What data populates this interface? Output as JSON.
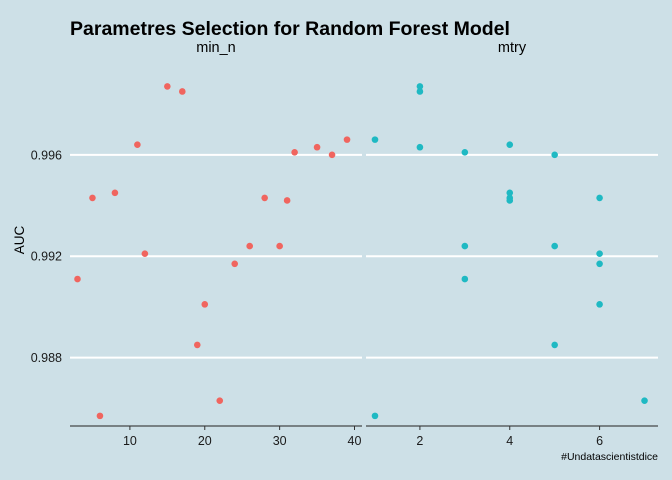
{
  "chart_data": {
    "type": "scatter",
    "title": "Parametres Selection for Random Forest Model",
    "ylabel": "AUC",
    "caption": "#Undatascientistdice",
    "ylim": [
      0.9853,
      0.9999
    ],
    "y_ticks": [
      0.988,
      0.992,
      0.996
    ],
    "y_tick_labels": [
      "0.988",
      "0.992",
      "0.996"
    ],
    "grid": "horizontal major lines only",
    "legend": "none",
    "panels": [
      {
        "name": "min_n",
        "label": "min_n",
        "color": "#f0655f",
        "xlim": [
          2,
          41
        ],
        "x_ticks": [
          10,
          20,
          30,
          40
        ],
        "x_tick_labels": [
          "10",
          "20",
          "30",
          "40"
        ],
        "points": [
          {
            "x": 3,
            "y": 0.9911
          },
          {
            "x": 5,
            "y": 0.9943
          },
          {
            "x": 6,
            "y": 0.9857
          },
          {
            "x": 8,
            "y": 0.9945
          },
          {
            "x": 11,
            "y": 0.9964
          },
          {
            "x": 12,
            "y": 0.9921
          },
          {
            "x": 15,
            "y": 0.9987
          },
          {
            "x": 17,
            "y": 0.9985
          },
          {
            "x": 19,
            "y": 0.9885
          },
          {
            "x": 20,
            "y": 0.9901
          },
          {
            "x": 22,
            "y": 0.9863
          },
          {
            "x": 24,
            "y": 0.9917
          },
          {
            "x": 26,
            "y": 0.9924
          },
          {
            "x": 28,
            "y": 0.9943
          },
          {
            "x": 30,
            "y": 0.9924
          },
          {
            "x": 31,
            "y": 0.9942
          },
          {
            "x": 32,
            "y": 0.9961
          },
          {
            "x": 35,
            "y": 0.9963
          },
          {
            "x": 37,
            "y": 0.996
          },
          {
            "x": 39,
            "y": 0.9966
          }
        ]
      },
      {
        "name": "mtry",
        "label": "mtry",
        "color": "#1fb9c3",
        "xlim": [
          0.8,
          7.3
        ],
        "x_ticks": [
          2,
          4,
          6
        ],
        "x_tick_labels": [
          "2",
          "4",
          "6"
        ],
        "points": [
          {
            "x": 1,
            "y": 0.9966
          },
          {
            "x": 1,
            "y": 0.9857
          },
          {
            "x": 2,
            "y": 0.9987
          },
          {
            "x": 2,
            "y": 0.9985
          },
          {
            "x": 2,
            "y": 0.9963
          },
          {
            "x": 3,
            "y": 0.9961
          },
          {
            "x": 3,
            "y": 0.9924
          },
          {
            "x": 3,
            "y": 0.9911
          },
          {
            "x": 4,
            "y": 0.9964
          },
          {
            "x": 4,
            "y": 0.9945
          },
          {
            "x": 4,
            "y": 0.9943
          },
          {
            "x": 4,
            "y": 0.9942
          },
          {
            "x": 5,
            "y": 0.996
          },
          {
            "x": 5,
            "y": 0.9924
          },
          {
            "x": 5,
            "y": 0.9885
          },
          {
            "x": 6,
            "y": 0.9943
          },
          {
            "x": 6,
            "y": 0.9921
          },
          {
            "x": 6,
            "y": 0.9917
          },
          {
            "x": 6,
            "y": 0.9901
          },
          {
            "x": 7,
            "y": 0.9863
          }
        ]
      }
    ]
  }
}
